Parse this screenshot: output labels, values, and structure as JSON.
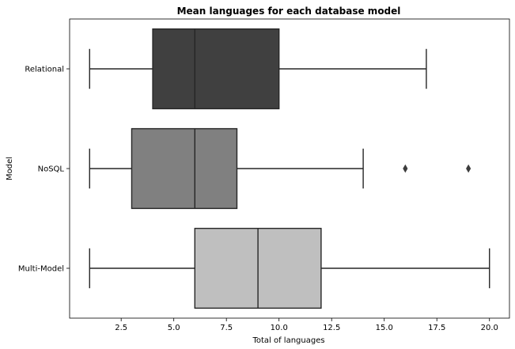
{
  "chart_data": {
    "type": "boxplot",
    "title": "Mean languages for each database model",
    "xlabel": "Total of languages",
    "ylabel": "Model",
    "xlim": [
      0.05,
      20.95
    ],
    "xticks": [
      "2.5",
      "5.0",
      "7.5",
      "10.0",
      "12.5",
      "15.0",
      "17.5",
      "20.0"
    ],
    "grid": false,
    "orientation": "horizontal",
    "categories": [
      "Relational",
      "NoSQL",
      "Multi-Model"
    ],
    "boxes": [
      {
        "category": "Relational",
        "whisker_low": 1,
        "q1": 4,
        "median": 6,
        "q3": 10,
        "whisker_high": 17,
        "outliers": [],
        "color": "#404040"
      },
      {
        "category": "NoSQL",
        "whisker_low": 1,
        "q1": 3,
        "median": 6,
        "q3": 8,
        "whisker_high": 14,
        "outliers": [
          16,
          19
        ],
        "color": "#808080"
      },
      {
        "category": "Multi-Model",
        "whisker_low": 1,
        "q1": 6,
        "median": 9,
        "q3": 12,
        "whisker_high": 20,
        "outliers": [],
        "color": "#bfbfbf"
      }
    ]
  }
}
